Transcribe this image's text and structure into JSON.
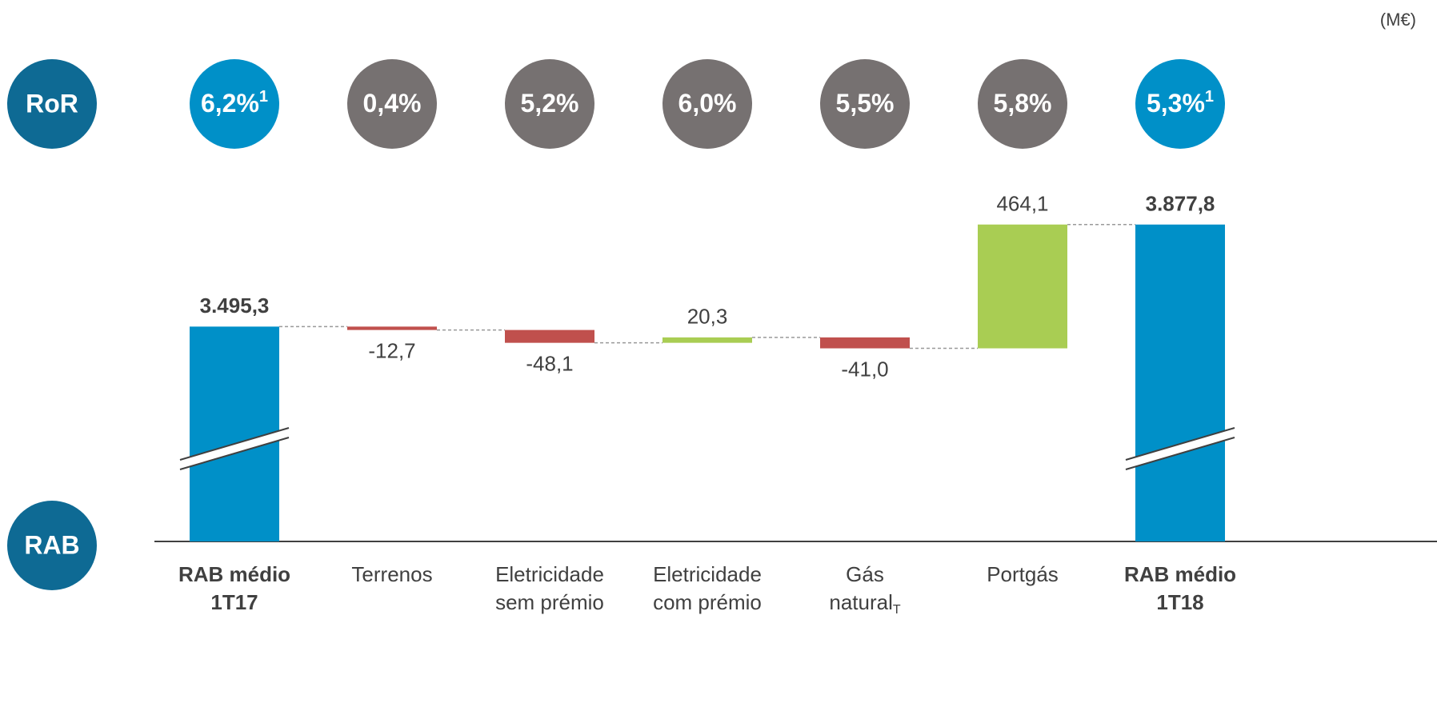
{
  "chart_data": {
    "type": "waterfall",
    "unit_note": "(M€)",
    "row_labels": {
      "top": "RoR",
      "bottom": "RAB"
    },
    "ror": [
      {
        "text": "6,2%",
        "footnote": "1"
      },
      {
        "text": "0,4%"
      },
      {
        "text": "5,2%"
      },
      {
        "text": "6,0%"
      },
      {
        "text": "5,5%"
      },
      {
        "text": "5,8%"
      },
      {
        "text": "5,3%",
        "footnote": "1"
      }
    ],
    "categories": [
      [
        "RAB médio",
        "1T17"
      ],
      [
        "Terrenos"
      ],
      [
        "Eletricidade",
        "sem prémio"
      ],
      [
        "Eletricidade",
        "com prémio"
      ],
      [
        "Gás",
        "natural",
        "T"
      ],
      [
        "Portgás"
      ],
      [
        "RAB médio",
        "1T18"
      ]
    ],
    "values": [
      3495.3,
      -12.7,
      -48.1,
      20.3,
      -41.0,
      464.1,
      3877.8
    ],
    "value_labels": [
      "3.495,3",
      "-12,7",
      "-48,1",
      "20,3",
      "-41,0",
      "464,1",
      "3.877,8"
    ],
    "totals": [
      0,
      6
    ],
    "colors": {
      "total": "#0090c8",
      "increase": "#a9cd53",
      "decrease": "#c0504d",
      "ror_total": "#0090c8",
      "ror_other": "#767171",
      "row_label": "#0e6a94"
    },
    "ylim": [
      2690,
      4000
    ]
  }
}
